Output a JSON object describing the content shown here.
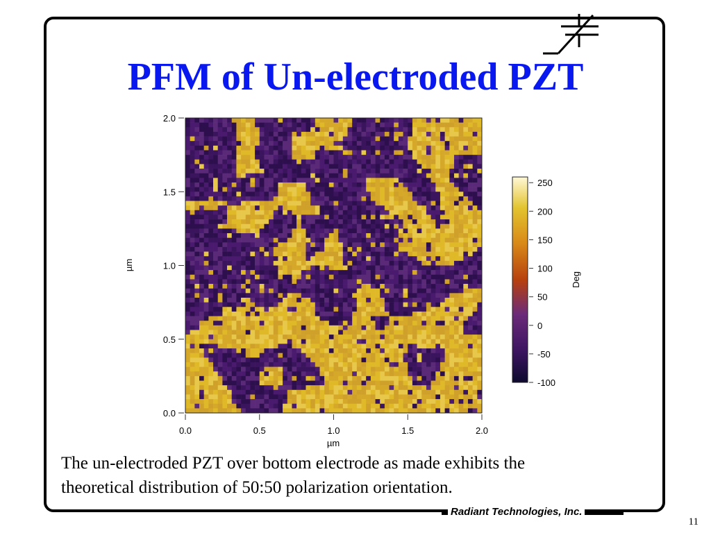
{
  "slide": {
    "title": "PFM of Un-electroded PZT",
    "caption_lines": [
      "The un-electroded PZT over bottom electrode as made exhibits the",
      "theoretical distribution of 50:50 polarization orientation."
    ],
    "footer": "Radiant Technologies, Inc.",
    "page_number": "11"
  },
  "chart_data": {
    "type": "heatmap",
    "title": "",
    "xlabel": "µm",
    "ylabel": "µm",
    "xlim": [
      0.0,
      2.0
    ],
    "ylim": [
      0.0,
      2.0
    ],
    "x_ticks": [
      "0.0",
      "0.5",
      "1.0",
      "1.5",
      "2.0"
    ],
    "y_ticks": [
      "0.0",
      "0.5",
      "1.0",
      "1.5",
      "2.0"
    ],
    "colorbar": {
      "label": "Deg",
      "range": [
        -100,
        260
      ],
      "ticks": [
        "250",
        "200",
        "150",
        "100",
        "50",
        "0",
        "-50",
        "-100"
      ],
      "colormap": [
        "#0d0a2e",
        "#3b1460",
        "#6b2a7a",
        "#b7410e",
        "#d98a18",
        "#e3c430",
        "#fff8d6"
      ]
    },
    "distribution": "approximately 50:50 split between two phase states (~ -30 Deg purple domains and ~ 210 Deg yellow domains)"
  }
}
